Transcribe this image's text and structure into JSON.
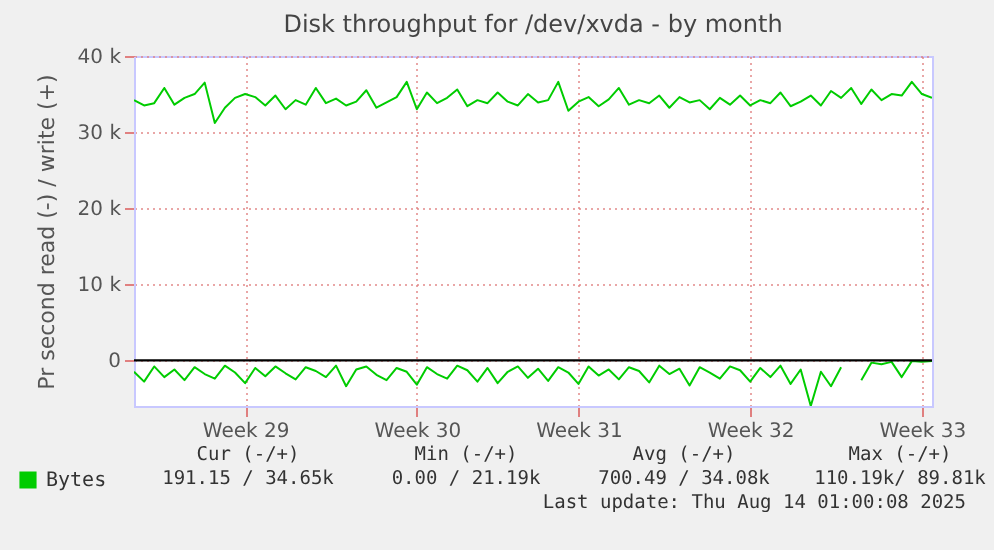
{
  "chart_data": {
    "type": "line",
    "title": "Disk throughput for /dev/xvda - by month",
    "ylabel": "Pr second read (-) / write (+)",
    "ylim": [
      -6000,
      40000
    ],
    "categories": [
      null,
      null,
      null,
      null,
      null,
      null,
      null,
      null,
      null,
      null,
      null,
      "Week 29",
      null,
      null,
      null,
      null,
      null,
      null,
      null,
      null,
      null,
      null,
      null,
      null,
      null,
      null,
      null,
      null,
      "Week 30",
      null,
      null,
      null,
      null,
      null,
      null,
      null,
      null,
      null,
      null,
      null,
      null,
      null,
      null,
      null,
      "Week 31",
      null,
      null,
      null,
      null,
      null,
      null,
      null,
      null,
      null,
      null,
      null,
      null,
      null,
      null,
      null,
      null,
      "Week 32",
      null,
      null,
      null,
      null,
      null,
      null,
      null,
      null,
      null,
      null,
      null,
      null,
      null,
      null,
      null,
      null,
      "Week 33",
      null
    ],
    "yticks": [
      {
        "value": 0,
        "label": "0"
      },
      {
        "value": 10000,
        "label": "10 k"
      },
      {
        "value": 20000,
        "label": "20 k"
      },
      {
        "value": 30000,
        "label": "30 k"
      },
      {
        "value": 40000,
        "label": "40 k"
      }
    ],
    "series": [
      {
        "name": "Bytes",
        "color": "#00cc00",
        "values": [
          34200,
          33500,
          33800,
          35800,
          33600,
          34500,
          35000,
          36500,
          31200,
          33200,
          34500,
          35000,
          34600,
          33500,
          34800,
          33000,
          34200,
          33600,
          35800,
          33800,
          34400,
          33500,
          34000,
          35500,
          33200,
          33900,
          34600,
          36600,
          33000,
          35200,
          33800,
          34500,
          35600,
          33400,
          34200,
          33800,
          35200,
          34000,
          33500,
          35000,
          33900,
          34200,
          36600,
          32800,
          34000,
          34600,
          33400,
          34300,
          35800,
          33600,
          34200,
          33800,
          34800,
          33200,
          34600,
          33900,
          34200,
          33000,
          34500,
          33600,
          34800,
          33500,
          34200,
          33800,
          35200,
          33400,
          34000,
          34800,
          33500,
          35400,
          34500,
          35800,
          33700,
          35600,
          34200,
          35000,
          34800,
          36600,
          35000,
          34500
        ]
      },
      {
        "color": "#00cc00",
        "values": [
          -1500,
          -2800,
          -800,
          -2200,
          -1200,
          -2600,
          -900,
          -1800,
          -2400,
          -700,
          -1600,
          -3000,
          -1000,
          -2100,
          -800,
          -1700,
          -2500,
          -900,
          -1400,
          -2200,
          -700,
          -3400,
          -1200,
          -800,
          -1900,
          -2600,
          -1000,
          -1500,
          -3200,
          -900,
          -1800,
          -2400,
          -700,
          -1300,
          -2800,
          -1000,
          -3000,
          -1500,
          -800,
          -2300,
          -1100,
          -2700,
          -900,
          -1600,
          -3100,
          -800,
          -2000,
          -1200,
          -2500,
          -900,
          -1400,
          -2900,
          -700,
          -1800,
          -1100,
          -3300,
          -900,
          -1600,
          -2400,
          -800,
          -1300,
          -2800,
          -1000,
          -2200,
          -700,
          -3100,
          -1200,
          -6000,
          -1500,
          -3400,
          -900,
          null,
          -2600,
          -300,
          -500,
          -200,
          -2200,
          -100,
          -200,
          -100
        ]
      }
    ],
    "ref_lines": [
      {
        "axis": "y",
        "value": 0,
        "color": "#000000"
      }
    ],
    "grid": true,
    "legend": "bottom left",
    "marker": "none",
    "line_style": "solid",
    "annotations": [
      "Cur (-/+)",
      "Min (-/+)",
      "Avg (-/+)",
      "Max (-/+)",
      "191.15 / 34.65k",
      "0.00 / 21.19k",
      "700.49 / 34.08k",
      "110.19k/ 89.81k",
      "Last update: Thu Aug 14 01:00:08 2025"
    ]
  }
}
